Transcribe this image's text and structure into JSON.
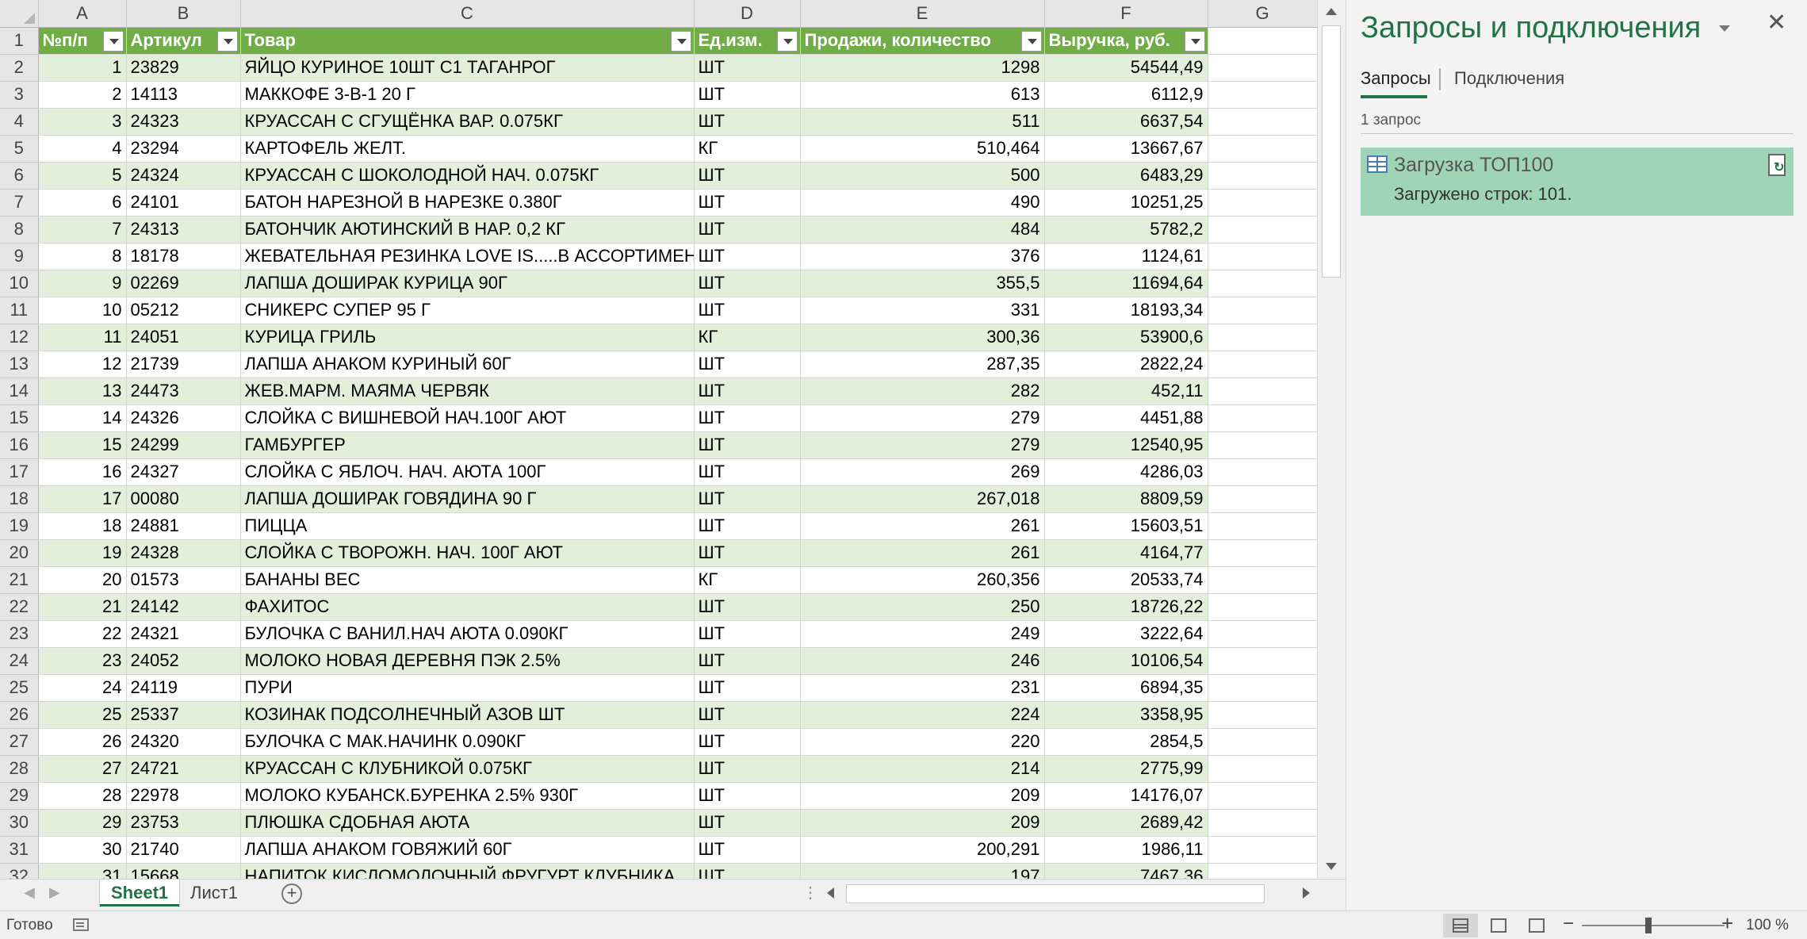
{
  "sheet": {
    "column_letters": [
      "A",
      "B",
      "C",
      "D",
      "E",
      "F",
      "G"
    ],
    "header": {
      "row_num": "1",
      "cells": [
        "№п/п",
        "Артикул",
        "Товар",
        "Ед.изм.",
        "Продажи, количество",
        "Выручка, руб."
      ]
    },
    "rows": [
      {
        "r": "2",
        "n": "1",
        "sku": "23829",
        "name": "ЯЙЦО КУРИНОЕ 10ШТ С1 ТАГАНРОГ",
        "unit": "ШТ",
        "qty": "1298",
        "rev": "54544,49"
      },
      {
        "r": "3",
        "n": "2",
        "sku": "14113",
        "name": "МАККОФЕ 3-В-1 20 Г",
        "unit": "ШТ",
        "qty": "613",
        "rev": "6112,9"
      },
      {
        "r": "4",
        "n": "3",
        "sku": "24323",
        "name": "КРУАССАН С СГУЩЁНКА ВАР.  0.075КГ",
        "unit": "ШТ",
        "qty": "511",
        "rev": "6637,54"
      },
      {
        "r": "5",
        "n": "4",
        "sku": "23294",
        "name": "КАРТОФЕЛЬ ЖЕЛТ.",
        "unit": "КГ",
        "qty": "510,464",
        "rev": "13667,67"
      },
      {
        "r": "6",
        "n": "5",
        "sku": "24324",
        "name": "КРУАССАН С ШОКОЛОДНОЙ НАЧ.  0.075КГ",
        "unit": "ШТ",
        "qty": "500",
        "rev": "6483,29"
      },
      {
        "r": "7",
        "n": "6",
        "sku": "24101",
        "name": "БАТОН НАРЕЗНОЙ В НАРЕЗКЕ 0.380Г",
        "unit": "ШТ",
        "qty": "490",
        "rev": "10251,25"
      },
      {
        "r": "8",
        "n": "7",
        "sku": "24313",
        "name": "БАТОНЧИК АЮТИНСКИЙ В НАР. 0,2 КГ",
        "unit": "ШТ",
        "qty": "484",
        "rev": "5782,2"
      },
      {
        "r": "9",
        "n": "8",
        "sku": "18178",
        "name": "ЖЕВАТЕЛЬНАЯ РЕЗИНКА  LOVE IS.....В АССОРТИМЕНТЕ",
        "unit": "ШТ",
        "qty": "376",
        "rev": "1124,61"
      },
      {
        "r": "10",
        "n": "9",
        "sku": "02269",
        "name": "ЛАПША ДОШИРАК КУРИЦА 90Г",
        "unit": "ШТ",
        "qty": "355,5",
        "rev": "11694,64"
      },
      {
        "r": "11",
        "n": "10",
        "sku": "05212",
        "name": "СНИКЕРС СУПЕР 95 Г",
        "unit": "ШТ",
        "qty": "331",
        "rev": "18193,34"
      },
      {
        "r": "12",
        "n": "11",
        "sku": "24051",
        "name": "КУРИЦА ГРИЛЬ",
        "unit": "КГ",
        "qty": "300,36",
        "rev": "53900,6"
      },
      {
        "r": "13",
        "n": "12",
        "sku": "21739",
        "name": "ЛАПША АНАКОМ КУРИНЫЙ  60Г",
        "unit": "ШТ",
        "qty": "287,35",
        "rev": "2822,24"
      },
      {
        "r": "14",
        "n": "13",
        "sku": "24473",
        "name": "ЖЕВ.МАРМ. МАЯМА ЧЕРВЯК",
        "unit": "ШТ",
        "qty": "282",
        "rev": "452,11"
      },
      {
        "r": "15",
        "n": "14",
        "sku": "24326",
        "name": "СЛОЙКА С ВИШНЕВОЙ НАЧ.100Г АЮТ",
        "unit": "ШТ",
        "qty": "279",
        "rev": "4451,88"
      },
      {
        "r": "16",
        "n": "15",
        "sku": "24299",
        "name": "ГАМБУРГЕР",
        "unit": "ШТ",
        "qty": "279",
        "rev": "12540,95"
      },
      {
        "r": "17",
        "n": "16",
        "sku": "24327",
        "name": "СЛОЙКА С ЯБЛОЧ. НАЧ. АЮТА 100Г",
        "unit": "ШТ",
        "qty": "269",
        "rev": "4286,03"
      },
      {
        "r": "18",
        "n": "17",
        "sku": "00080",
        "name": "ЛАПША ДОШИРАК ГОВЯДИНА 90 Г",
        "unit": "ШТ",
        "qty": "267,018",
        "rev": "8809,59"
      },
      {
        "r": "19",
        "n": "18",
        "sku": "24881",
        "name": "ПИЦЦА",
        "unit": "ШТ",
        "qty": "261",
        "rev": "15603,51"
      },
      {
        "r": "20",
        "n": "19",
        "sku": "24328",
        "name": "СЛОЙКА С ТВОРОЖН. НАЧ. 100Г АЮТ",
        "unit": "ШТ",
        "qty": "261",
        "rev": "4164,77"
      },
      {
        "r": "21",
        "n": "20",
        "sku": "01573",
        "name": "БАНАНЫ ВЕС",
        "unit": "КГ",
        "qty": "260,356",
        "rev": "20533,74"
      },
      {
        "r": "22",
        "n": "21",
        "sku": "24142",
        "name": "ФАХИТОС",
        "unit": "ШТ",
        "qty": "250",
        "rev": "18726,22"
      },
      {
        "r": "23",
        "n": "22",
        "sku": "24321",
        "name": "БУЛОЧКА С ВАНИЛ.НАЧ АЮТА 0.090КГ",
        "unit": "ШТ",
        "qty": "249",
        "rev": "3222,64"
      },
      {
        "r": "24",
        "n": "23",
        "sku": "24052",
        "name": "МОЛОКО НОВАЯ ДЕРЕВНЯ ПЭК 2.5%",
        "unit": "ШТ",
        "qty": "246",
        "rev": "10106,54"
      },
      {
        "r": "25",
        "n": "24",
        "sku": "24119",
        "name": "ПУРИ",
        "unit": "ШТ",
        "qty": "231",
        "rev": "6894,35"
      },
      {
        "r": "26",
        "n": "25",
        "sku": "25337",
        "name": "КОЗИНАК ПОДСОЛНЕЧНЫЙ  АЗОВ ШТ",
        "unit": "ШТ",
        "qty": "224",
        "rev": "3358,95"
      },
      {
        "r": "27",
        "n": "26",
        "sku": "24320",
        "name": "БУЛОЧКА С МАК.НАЧИНК 0.090КГ",
        "unit": "ШТ",
        "qty": "220",
        "rev": "2854,5"
      },
      {
        "r": "28",
        "n": "27",
        "sku": "24721",
        "name": "КРУАССАН С КЛУБНИКОЙ 0.075КГ",
        "unit": "ШТ",
        "qty": "214",
        "rev": "2775,99"
      },
      {
        "r": "29",
        "n": "28",
        "sku": "22978",
        "name": "МОЛОКО КУБАНСК.БУРЕНКА 2.5%  930Г",
        "unit": "ШТ",
        "qty": "209",
        "rev": "14176,07"
      },
      {
        "r": "30",
        "n": "29",
        "sku": "23753",
        "name": "ПЛЮШКА СДОБНАЯ АЮТА",
        "unit": "ШТ",
        "qty": "209",
        "rev": "2689,42"
      },
      {
        "r": "31",
        "n": "30",
        "sku": "21740",
        "name": "ЛАПША АНАКОМ ГОВЯЖИЙ  60Г",
        "unit": "ШТ",
        "qty": "200,291",
        "rev": "1986,11"
      },
      {
        "r": "32",
        "n": "31",
        "sku": "15668",
        "name": "НАПИТОК КИСЛОМОЛОЧНЫЙ ФРУГУРТ КЛУБНИКА",
        "unit": "ШТ",
        "qty": "197",
        "rev": "7467,36"
      }
    ]
  },
  "sheet_tabs": [
    "Sheet1",
    "Лист1"
  ],
  "active_sheet": "Sheet1",
  "pane": {
    "title": "Запросы и подключения",
    "tabs": [
      "Запросы",
      "Подключения"
    ],
    "query_count": "1 запрос",
    "query": {
      "name": "Загрузка ТОП100",
      "status": "Загружено строк: 101."
    }
  },
  "status_bar": {
    "status": "Готово",
    "zoom": "100 %"
  },
  "colors": {
    "table_header": "#70ad47",
    "band": "#e2efda",
    "accent": "#217346",
    "query_card": "#9fd5b6"
  },
  "icons": {
    "pane_menu": "chevron-down-icon",
    "pane_close": "close-icon",
    "query": "table-icon",
    "refresh": "refresh-icon",
    "add_sheet": "plus-circle-icon"
  }
}
